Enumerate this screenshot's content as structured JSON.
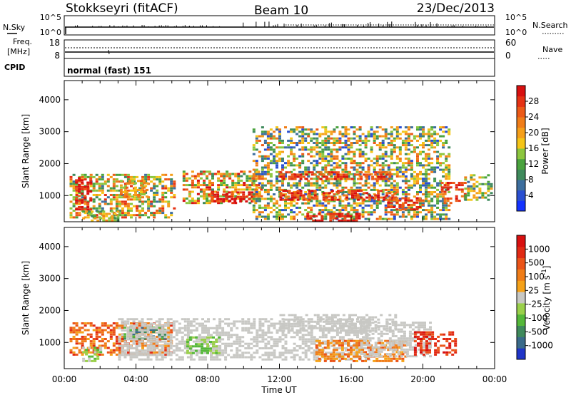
{
  "header": {
    "station": "Stokkseyri (fitACF)",
    "beam": "Beam 10",
    "date": "23/Dec/2013"
  },
  "nsky_panel": {
    "left_label": "N.Sky",
    "right_label": "N.Search",
    "left_ticks": [
      "10^5",
      "10^0"
    ],
    "right_ticks": [
      "10^5",
      "10^0"
    ]
  },
  "freq_panel": {
    "left_label_1": "Freq.",
    "left_label_2": "[MHz]",
    "right_label": "Nave",
    "left_ticks": [
      "18",
      "8"
    ],
    "right_ticks": [
      "60",
      "0"
    ]
  },
  "cpid_panel": {
    "label": "CPID",
    "text": "normal (fast) 151"
  },
  "chart_data": [
    {
      "type": "heatmap",
      "name": "power",
      "ylabel": "Slant Range [km]",
      "ylim": [
        180,
        4600
      ],
      "yticks": [
        1000,
        2000,
        3000,
        4000
      ],
      "xlim": [
        "00:00",
        "24:00"
      ],
      "xticks": [
        "00:00",
        "04:00",
        "08:00",
        "12:00",
        "16:00",
        "20:00",
        "00:00"
      ],
      "colorbar": {
        "label": "Power [dB]",
        "ticks": [
          "4",
          "8",
          "12",
          "16",
          "20",
          "24",
          "28"
        ],
        "colors": [
          "#1433ff",
          "#2a4fd1",
          "#3d6e9e",
          "#3f8a5c",
          "#4aa33e",
          "#8cc63e",
          "#f5c518",
          "#f59f1a",
          "#f07d18",
          "#ec5a17",
          "#e53214",
          "#d81010"
        ]
      }
    },
    {
      "type": "heatmap",
      "name": "velocity",
      "ylabel": "Slant Range [km]",
      "xlabel": "Time UT",
      "ylim": [
        180,
        4600
      ],
      "yticks": [
        1000,
        2000,
        3000,
        4000
      ],
      "xlim": [
        "00:00",
        "24:00"
      ],
      "xticks": [
        "00:00",
        "04:00",
        "08:00",
        "12:00",
        "16:00",
        "20:00",
        "00:00"
      ],
      "colorbar": {
        "label": "Velocity [m s-1]",
        "label_parts": [
          "Velocity [m s",
          "-1",
          "]"
        ],
        "ticks": [
          "1000",
          "500",
          "100",
          "25",
          "-25",
          "-100",
          "-500",
          "-1000"
        ],
        "colors": [
          "#2035c8",
          "#3a6b8a",
          "#3f8a5c",
          "#55b83a",
          "#9ad04a",
          "#c8c8c4",
          "#f5a21a",
          "#f07d18",
          "#eb5418",
          "#e12a14",
          "#d81010"
        ]
      }
    }
  ],
  "echo_regions_power": [
    {
      "t0": 0.3,
      "t1": 6.1,
      "r0": 350,
      "r1": 1750,
      "p": [
        2,
        10
      ]
    },
    {
      "t0": 0.6,
      "t1": 1.5,
      "r0": 600,
      "r1": 1650,
      "p": [
        9,
        12
      ]
    },
    {
      "t0": 1.0,
      "t1": 3.0,
      "r0": 250,
      "r1": 600,
      "p": [
        3,
        8
      ]
    },
    {
      "t0": 3.1,
      "t1": 4.6,
      "r0": 1000,
      "r1": 1500,
      "p": [
        5,
        9
      ]
    },
    {
      "t0": 6.6,
      "t1": 11.0,
      "r0": 800,
      "r1": 1800,
      "p": [
        3,
        11
      ]
    },
    {
      "t0": 8.0,
      "t1": 10.5,
      "r0": 850,
      "r1": 1200,
      "p": [
        9,
        12
      ]
    },
    {
      "t0": 10.5,
      "t1": 21.5,
      "r0": 300,
      "r1": 3200,
      "p": [
        1,
        9
      ]
    },
    {
      "t0": 12.0,
      "t1": 18.2,
      "r0": 1550,
      "r1": 1800,
      "p": [
        8,
        11
      ]
    },
    {
      "t0": 12.0,
      "t1": 18.5,
      "r0": 900,
      "r1": 1200,
      "p": [
        8,
        12
      ]
    },
    {
      "t0": 13.5,
      "t1": 16.5,
      "r0": 250,
      "r1": 500,
      "p": [
        9,
        12
      ]
    },
    {
      "t0": 18.0,
      "t1": 20.0,
      "r0": 600,
      "r1": 1000,
      "p": [
        8,
        11
      ]
    },
    {
      "t0": 21.0,
      "t1": 22.3,
      "r0": 800,
      "r1": 1500,
      "p": [
        8,
        11
      ]
    },
    {
      "t0": 22.3,
      "t1": 23.8,
      "r0": 900,
      "r1": 1700,
      "p": [
        2,
        8
      ]
    }
  ],
  "echo_regions_velocity": [
    {
      "t0": 0.3,
      "t1": 6.0,
      "r0": 650,
      "r1": 1700,
      "v": [
        6,
        9
      ]
    },
    {
      "t0": 1.0,
      "t1": 2.0,
      "r0": 450,
      "r1": 900,
      "v": [
        3,
        5
      ]
    },
    {
      "t0": 3.3,
      "t1": 5.6,
      "r0": 1150,
      "r1": 1550,
      "v": [
        1,
        3
      ]
    },
    {
      "t0": 3.0,
      "t1": 17.0,
      "r0": 500,
      "r1": 1800,
      "v": [
        5,
        5
      ]
    },
    {
      "t0": 6.8,
      "t1": 8.7,
      "r0": 700,
      "r1": 1250,
      "v": [
        3,
        4
      ]
    },
    {
      "t0": 12.0,
      "t1": 18.5,
      "r0": 1400,
      "r1": 1900,
      "v": [
        5,
        5
      ]
    },
    {
      "t0": 14.0,
      "t1": 19.0,
      "r0": 450,
      "r1": 1150,
      "v": [
        6,
        8
      ]
    },
    {
      "t0": 16.5,
      "t1": 20.5,
      "r0": 600,
      "r1": 1700,
      "v": [
        5,
        5
      ]
    },
    {
      "t0": 19.5,
      "t1": 21.8,
      "r0": 650,
      "r1": 1400,
      "v": [
        8,
        10
      ]
    }
  ]
}
